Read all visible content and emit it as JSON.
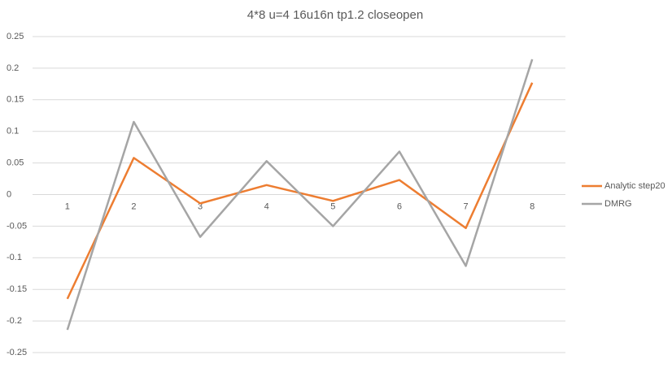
{
  "chart_data": {
    "type": "line",
    "title": "4*8 u=4 16u16n tp1.2 closeopen",
    "categories": [
      "1",
      "2",
      "3",
      "4",
      "5",
      "6",
      "7",
      "8"
    ],
    "series": [
      {
        "name": "Analytic step20",
        "color": "#ed7d31",
        "values": [
          -0.165,
          0.058,
          -0.014,
          0.015,
          -0.01,
          0.023,
          -0.053,
          0.177
        ]
      },
      {
        "name": "DMRG",
        "color": "#a5a5a5",
        "values": [
          -0.214,
          0.115,
          -0.067,
          0.053,
          -0.05,
          0.068,
          -0.113,
          0.214
        ]
      }
    ],
    "ylim": [
      -0.25,
      0.25
    ],
    "yticks": [
      -0.25,
      -0.2,
      -0.15,
      -0.1,
      -0.05,
      0,
      0.05,
      0.1,
      0.15,
      0.2,
      0.25
    ],
    "grid": true,
    "legend": "right"
  }
}
